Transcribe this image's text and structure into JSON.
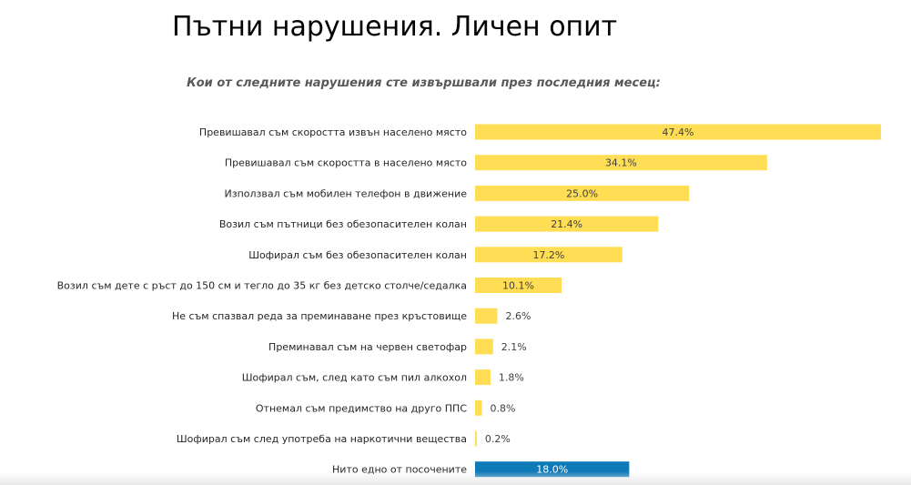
{
  "title": "Пътни нарушения. Личен опит",
  "chart_data": {
    "type": "bar",
    "orientation": "horizontal",
    "title": "Пътни нарушения. Личен опит",
    "subtitle": "Кои от следните нарушения сте извършвали през последния месец:",
    "xlabel": "",
    "ylabel": "",
    "xlim": [
      0,
      47.4
    ],
    "grid": false,
    "legend": "none",
    "unit": "%",
    "categories": [
      "Превишавал съм скоростта извън населено място",
      "Превишавал съм скоростта в населено място",
      "Използвал съм мобилен телефон в движение",
      "Возил съм пътници без обезопасителен колан",
      "Шофирал съм без обезопасителен колан",
      "Возил съм дете с ръст до 150 см и тегло до 35 кг без детско столче/седалка",
      "Не съм спазвал реда за преминаване през кръстовище",
      "Преминавал съм на червен светофар",
      "Шофирал съм, след като съм пил алкохол",
      "Отнемал съм предимство на друго ППС",
      "Шофирал съм след употреба на наркотични вещества",
      "Нито едно от посочените"
    ],
    "values": [
      47.4,
      34.1,
      25.0,
      21.4,
      17.2,
      10.1,
      2.6,
      2.1,
      1.8,
      0.8,
      0.2,
      18.0
    ],
    "value_labels": [
      "47.4%",
      "34.1%",
      "25.0%",
      "21.4%",
      "17.2%",
      "10.1%",
      "2.6%",
      "2.1%",
      "1.8%",
      "0.8%",
      "0.2%",
      "18.0%"
    ],
    "bar_colors": [
      "#FFDD55",
      "#FFDD55",
      "#FFDD55",
      "#FFDD55",
      "#FFDD55",
      "#FFDD55",
      "#FFDD55",
      "#FFDD55",
      "#FFDD55",
      "#FFDD55",
      "#FFDD55",
      "#0E7AB8"
    ]
  }
}
